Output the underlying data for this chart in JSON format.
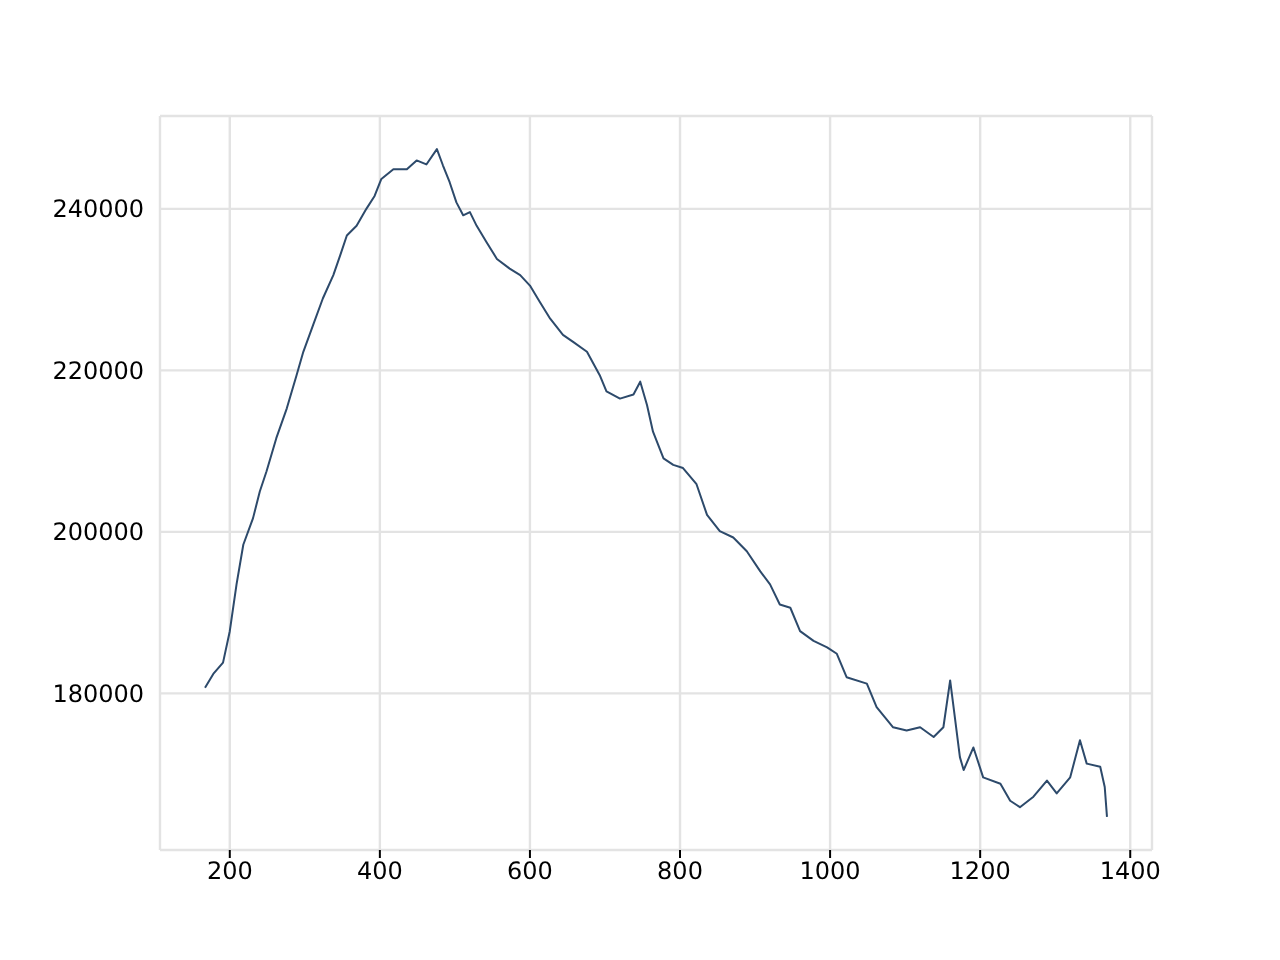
{
  "chart_data": {
    "type": "line",
    "x": [
      167,
      178,
      191,
      200,
      209,
      218,
      231,
      240,
      249,
      262,
      276,
      289,
      298,
      311,
      324,
      338,
      347,
      356,
      369,
      382,
      393,
      402,
      418,
      436,
      449,
      462,
      476,
      484,
      493,
      502,
      511,
      520,
      529,
      542,
      556,
      573,
      587,
      600,
      613,
      627,
      644,
      658,
      676,
      693,
      702,
      720,
      738,
      747,
      756,
      764,
      778,
      791,
      804,
      822,
      836,
      853,
      871,
      889,
      907,
      920,
      933,
      947,
      960,
      978,
      996,
      1009,
      1022,
      1049,
      1062,
      1084,
      1102,
      1120,
      1138,
      1151,
      1160,
      1164,
      1173,
      1178,
      1191,
      1204,
      1227,
      1240,
      1253,
      1271,
      1289,
      1302,
      1320,
      1333,
      1342,
      1360,
      1366,
      1369
    ],
    "series": [
      {
        "color": "#2d4a6b",
        "values": [
          180700,
          182400,
          183800,
          187700,
          193500,
          198400,
          201700,
          205000,
          207500,
          211600,
          215300,
          219400,
          222300,
          225600,
          228900,
          231800,
          234200,
          236700,
          237900,
          240000,
          241600,
          243700,
          244900,
          244900,
          246000,
          245500,
          247400,
          245400,
          243300,
          240800,
          239200,
          239600,
          237900,
          235900,
          233800,
          232600,
          231800,
          230500,
          228500,
          226400,
          224400,
          223500,
          222300,
          219400,
          217400,
          216500,
          217000,
          218600,
          215700,
          212400,
          209100,
          208300,
          207900,
          205900,
          202100,
          200100,
          199300,
          197600,
          195100,
          193500,
          191000,
          190600,
          187700,
          186500,
          185700,
          184900,
          182000,
          181200,
          178300,
          175800,
          175400,
          175800,
          174600,
          175800,
          181600,
          178700,
          172100,
          170500,
          173300,
          169600,
          168800,
          166700,
          165900,
          167200,
          169200,
          167600,
          169600,
          174200,
          171300,
          170900,
          168400,
          164700
        ]
      }
    ],
    "xlim": [
      107,
      1429
    ],
    "ylim": [
      160600,
      251500
    ],
    "xticks": [
      200,
      400,
      600,
      800,
      1000,
      1200,
      1400
    ],
    "yticks": [
      180000,
      200000,
      220000,
      240000
    ],
    "grid": true,
    "legend": false,
    "marker": "none",
    "line_style": "solid"
  }
}
